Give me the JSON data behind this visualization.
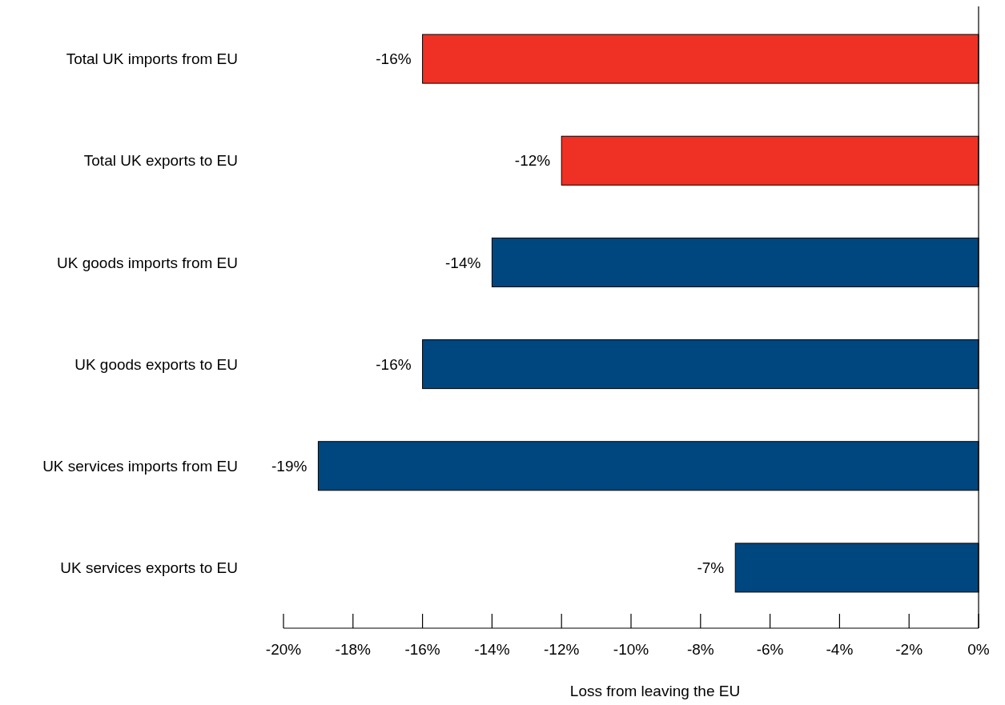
{
  "chart_data": {
    "type": "bar",
    "orientation": "horizontal",
    "xlabel": "Loss from leaving the EU",
    "categories": [
      "Total UK imports from EU",
      "Total UK exports to EU",
      "UK goods imports from EU",
      "UK goods exports to EU",
      "UK services imports from EU",
      "UK services exports to EU"
    ],
    "values": [
      -16,
      -12,
      -14,
      -16,
      -19,
      -7
    ],
    "colors": [
      "#ee3124",
      "#ee3124",
      "#00467f",
      "#00467f",
      "#00467f",
      "#00467f"
    ],
    "value_labels": [
      "-16%",
      "-12%",
      "-14%",
      "-16%",
      "-19%",
      "-7%"
    ],
    "xlim": [
      -20,
      0
    ],
    "xticks": [
      {
        "value": -20,
        "label": "-20%"
      },
      {
        "value": -18,
        "label": "-18%"
      },
      {
        "value": -16,
        "label": "-16%"
      },
      {
        "value": -14,
        "label": "-14%"
      },
      {
        "value": -12,
        "label": "-12%"
      },
      {
        "value": -10,
        "label": "-10%"
      },
      {
        "value": -8,
        "label": "-8%"
      },
      {
        "value": -6,
        "label": "-6%"
      },
      {
        "value": -4,
        "label": "-4%"
      },
      {
        "value": -2,
        "label": "-2%"
      },
      {
        "value": 0,
        "label": "0%"
      }
    ],
    "grid": false
  }
}
